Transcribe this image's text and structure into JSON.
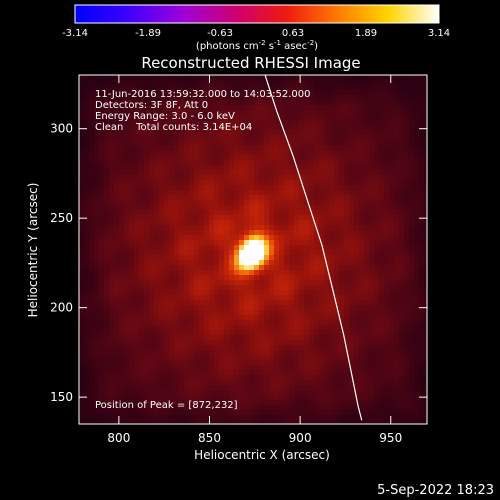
{
  "chart_data": {
    "type": "heatmap",
    "title": "Reconstructed RHESSI Image",
    "xlabel": "Heliocentric X (arcsec)",
    "ylabel": "Heliocentric Y (arcsec)",
    "xlim": [
      778,
      970
    ],
    "ylim": [
      135,
      330
    ],
    "x_ticks": [
      800,
      850,
      900,
      950
    ],
    "y_ticks": [
      150,
      200,
      250,
      300
    ],
    "colorbar": {
      "range": [
        -3.14,
        3.14
      ],
      "ticks": [
        "-3.14",
        "-1.89",
        "-0.63",
        "0.63",
        "1.89",
        "3.14"
      ],
      "label_prefix": "(photons cm",
      "label_sup1": "-2",
      "label_mid": " s",
      "label_sup2": "-1",
      "label_mid2": " asec",
      "label_sup3": "-2",
      "label_suffix": ")"
    },
    "annotations": [
      "11-Jun-2016 13:59:32.000 to 14:03:52.000",
      "Detectors: 3F 8F, Att 0",
      "Energy Range: 3.0 - 6.0 keV",
      "Clean    Total counts: 3.14E+04"
    ],
    "peak_label": "Position of Peak = [872,232]",
    "peak": {
      "x": 872,
      "y": 232,
      "value": 3.14
    },
    "limb_curve": [
      [
        880,
        332
      ],
      [
        887,
        310
      ],
      [
        896,
        285
      ],
      [
        904,
        260
      ],
      [
        912,
        235
      ],
      [
        918,
        210
      ],
      [
        924,
        185
      ],
      [
        929,
        160
      ],
      [
        932,
        145
      ],
      [
        934,
        137
      ]
    ],
    "timestamp": "5-Sep-2022 18:23"
  }
}
